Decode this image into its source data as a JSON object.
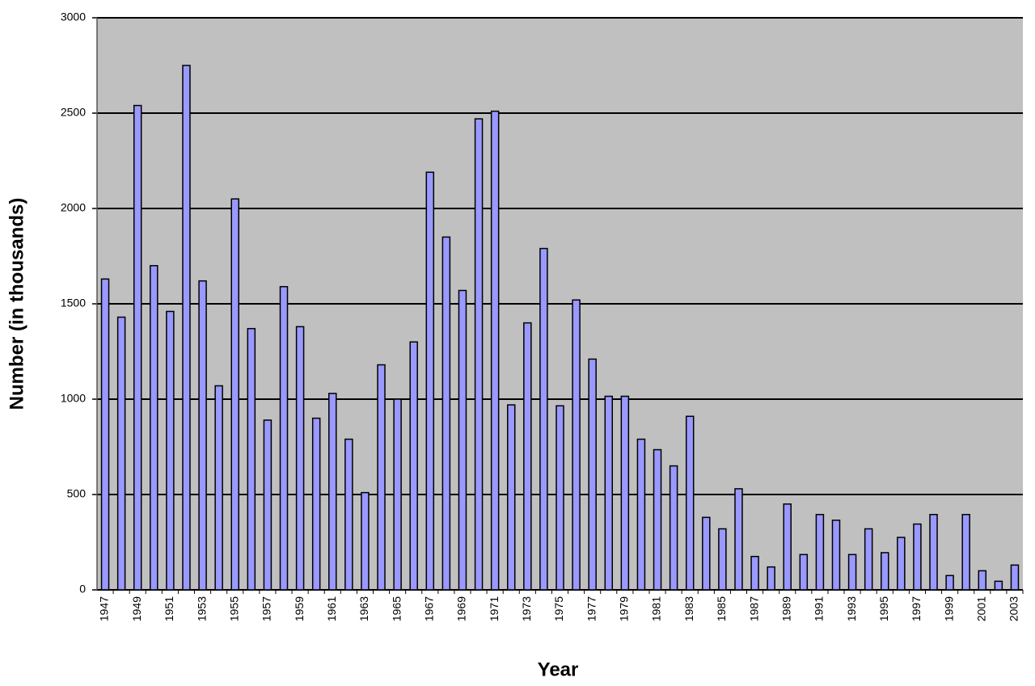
{
  "chart_data": {
    "type": "bar",
    "x_label": "Year",
    "y_label": "Number (in thousands)",
    "categories": [
      "1947",
      null,
      "1949",
      null,
      "1951",
      null,
      "1953",
      null,
      "1955",
      null,
      "1957",
      null,
      "1959",
      null,
      "1961",
      null,
      "1963",
      null,
      "1965",
      null,
      "1967",
      null,
      "1969",
      null,
      "1971",
      null,
      "1973",
      null,
      "1975",
      null,
      "1977",
      null,
      "1979",
      null,
      "1981",
      null,
      "1983",
      null,
      "1985",
      null,
      "1987",
      null,
      "1989",
      null,
      "1991",
      null,
      "1993",
      null,
      "1995",
      null,
      "1997",
      null,
      "1999",
      null,
      "2001",
      null,
      "2003"
    ],
    "values": [
      1630,
      1430,
      2540,
      1700,
      1460,
      2750,
      1620,
      1070,
      2050,
      1370,
      890,
      1590,
      1380,
      900,
      1030,
      790,
      510,
      1180,
      1000,
      1300,
      2190,
      1850,
      1570,
      2470,
      2510,
      970,
      1400,
      1790,
      965,
      1520,
      1210,
      1015,
      1015,
      790,
      735,
      650,
      910,
      380,
      320,
      530,
      175,
      120,
      450,
      185,
      395,
      365,
      185,
      320,
      195,
      275,
      345,
      395,
      75,
      395,
      100,
      45,
      130
    ],
    "color": "#9999ff",
    "ylim": [
      0,
      3000
    ],
    "yticks": [
      0,
      500,
      1000,
      1500,
      2000,
      2500,
      3000
    ],
    "grid": true
  }
}
